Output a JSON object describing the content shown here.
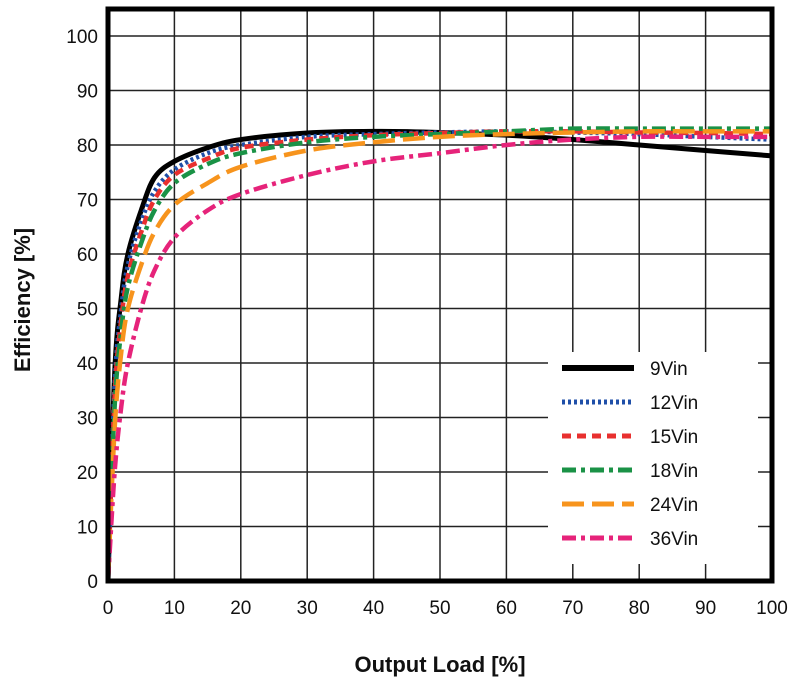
{
  "chart_data": {
    "type": "line",
    "title": "",
    "xlabel": "Output Load [%]",
    "ylabel": "Efficiency [%]",
    "xlim": [
      0,
      100
    ],
    "ylim": [
      0,
      100
    ],
    "xticks": [
      0,
      10,
      20,
      30,
      40,
      50,
      60,
      70,
      80,
      90,
      100
    ],
    "yticks": [
      0,
      10,
      20,
      30,
      40,
      50,
      60,
      70,
      80,
      90,
      100
    ],
    "grid": true,
    "legend_position": "bottom-right",
    "x": [
      0,
      1,
      2,
      3,
      5,
      7,
      10,
      15,
      20,
      30,
      40,
      50,
      60,
      70,
      80,
      90,
      100
    ],
    "series": [
      {
        "name": "9Vin",
        "color": "#000000",
        "dash": "solid",
        "values": [
          0,
          38,
          52,
          60,
          68,
          74,
          77,
          79.5,
          81,
          82.2,
          82.5,
          82.3,
          81.8,
          81,
          80,
          79,
          78
        ]
      },
      {
        "name": "12Vin",
        "color": "#1f4fa8",
        "dash": "dotted",
        "values": [
          0,
          36,
          50,
          58,
          66,
          71.5,
          75.5,
          78.5,
          80,
          81.5,
          82,
          82.3,
          82.5,
          82.3,
          82,
          81.5,
          81
        ]
      },
      {
        "name": "15Vin",
        "color": "#e8302f",
        "dash": "dashed",
        "values": [
          0,
          34,
          48,
          56,
          64,
          70,
          74.5,
          77.5,
          79.5,
          81,
          81.8,
          82.2,
          82.5,
          82.5,
          82.3,
          82.2,
          82
        ]
      },
      {
        "name": "18Vin",
        "color": "#1a9246",
        "dash": "dashdot",
        "values": [
          0,
          32,
          46,
          54,
          62,
          68,
          73,
          76.5,
          78.5,
          80.5,
          81.5,
          82,
          82.5,
          83,
          83,
          83,
          83
        ]
      },
      {
        "name": "24Vin",
        "color": "#f7941d",
        "dash": "longdash",
        "values": [
          0,
          28,
          42,
          50,
          58,
          64,
          69,
          73,
          76,
          79,
          80.5,
          81.5,
          82,
          82.3,
          82.5,
          82.5,
          82.5
        ]
      },
      {
        "name": "36Vin",
        "color": "#e6237a",
        "dash": "dashdot",
        "values": [
          0,
          20,
          32,
          40,
          50,
          57,
          63,
          68,
          71,
          74.5,
          77,
          78.5,
          80,
          81,
          81.5,
          81.5,
          81.5
        ]
      }
    ]
  }
}
